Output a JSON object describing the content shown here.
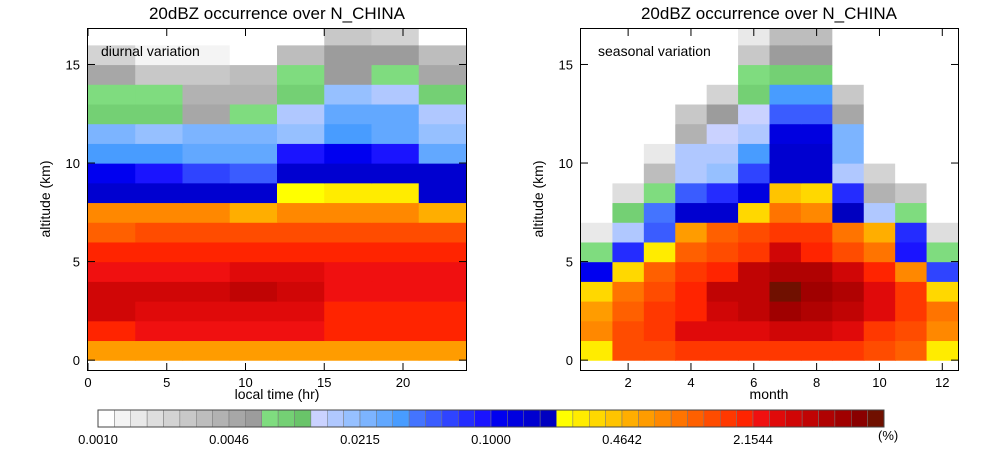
{
  "colorbar": {
    "colors": [
      "#ffffff",
      "#f4f4f4",
      "#e9e9e9",
      "#dedede",
      "#d3d3d3",
      "#c8c8c8",
      "#bdbdbd",
      "#b2b2b2",
      "#a7a7a7",
      "#9c9c9c",
      "#7fdc7f",
      "#74d074",
      "#69c469",
      "#cad2ff",
      "#b0c8ff",
      "#96c0ff",
      "#7cb4ff",
      "#62a8ff",
      "#489cff",
      "#4474ff",
      "#3a5cff",
      "#2f44ff",
      "#242cff",
      "#1a14ff",
      "#0000f0",
      "#0000e0",
      "#0000d0",
      "#0000c0",
      "#ffff00",
      "#ffec00",
      "#ffd800",
      "#ffc400",
      "#ffae00",
      "#ff9c00",
      "#ff8800",
      "#ff7400",
      "#ff6000",
      "#ff4c00",
      "#ff3800",
      "#ff2400",
      "#f01010",
      "#e00a0a",
      "#d00606",
      "#c00404",
      "#b00202",
      "#a00000",
      "#8a0000",
      "#701000"
    ],
    "tick_labels": [
      "0.0010",
      "0.0046",
      "0.0215",
      "0.1000",
      "0.4642",
      "2.1544"
    ],
    "unit": "(%)"
  },
  "chart_data": [
    {
      "type": "heatmap",
      "title": "20dBZ occurrence over N_CHINA",
      "annotation": "diurnal variation",
      "xlabel": "local time (hr)",
      "ylabel": "altitude (km)",
      "xlim": [
        0,
        24
      ],
      "ylim": [
        -0.5,
        16.8
      ],
      "xticks": [
        0,
        5,
        10,
        15,
        20
      ],
      "yticks": [
        0,
        5,
        10,
        15
      ],
      "x_edges": [
        0,
        3,
        6,
        9,
        12,
        15,
        18,
        21,
        24
      ],
      "y_edges": [
        0,
        1,
        2,
        3,
        4,
        5,
        6,
        7,
        8,
        9,
        10,
        11,
        12,
        13,
        14,
        15,
        16,
        17
      ],
      "levels": [
        [
          33,
          33,
          33,
          33,
          33,
          33,
          33,
          33
        ],
        [
          39,
          40,
          40,
          40,
          40,
          39,
          39,
          39
        ],
        [
          42,
          41,
          41,
          41,
          41,
          39,
          39,
          39
        ],
        [
          42,
          42,
          42,
          43,
          42,
          40,
          40,
          40
        ],
        [
          40,
          40,
          40,
          41,
          41,
          40,
          40,
          40
        ],
        [
          39,
          39,
          39,
          39,
          39,
          39,
          39,
          39
        ],
        [
          36,
          37,
          37,
          37,
          37,
          37,
          37,
          37
        ],
        [
          34,
          34,
          34,
          32,
          34,
          34,
          34,
          32
        ],
        [
          26,
          26,
          26,
          26,
          28,
          29,
          29,
          26
        ],
        [
          24,
          23,
          21,
          20,
          26,
          26,
          26,
          26
        ],
        [
          18,
          18,
          17,
          17,
          23,
          24,
          23,
          17
        ],
        [
          16,
          15,
          16,
          16,
          15,
          18,
          17,
          15
        ],
        [
          11,
          11,
          8,
          10,
          14,
          17,
          17,
          14
        ],
        [
          10,
          10,
          7,
          7,
          11,
          15,
          14,
          11
        ],
        [
          8,
          5,
          5,
          6,
          10,
          9,
          10,
          8
        ],
        [
          4,
          1,
          1,
          0,
          6,
          9,
          9,
          6
        ],
        [
          0,
          0,
          0,
          0,
          0,
          5,
          4,
          0
        ]
      ]
    },
    {
      "type": "heatmap",
      "title": "20dBZ occurrence over N_CHINA",
      "annotation": "seasonal variation",
      "xlabel": "month",
      "ylabel": "altitude (km)",
      "xlim": [
        0.5,
        12.5
      ],
      "ylim": [
        -0.5,
        16.8
      ],
      "xticks": [
        2,
        4,
        6,
        8,
        10,
        12
      ],
      "yticks": [
        0,
        5,
        10,
        15
      ],
      "x_edges": [
        0.5,
        1.5,
        2.5,
        3.5,
        4.5,
        5.5,
        6.5,
        7.5,
        8.5,
        9.5,
        10.5,
        11.5,
        12.5
      ],
      "y_edges": [
        0,
        1,
        2,
        3,
        4,
        5,
        6,
        7,
        8,
        9,
        10,
        11,
        12,
        13,
        14,
        15,
        16,
        17
      ],
      "levels": [
        [
          29,
          37,
          37,
          38,
          38,
          38,
          38,
          38,
          38,
          37,
          36,
          29
        ],
        [
          34,
          37,
          38,
          41,
          41,
          41,
          42,
          42,
          41,
          38,
          37,
          34
        ],
        [
          33,
          36,
          38,
          39,
          42,
          43,
          45,
          44,
          43,
          41,
          38,
          35
        ],
        [
          30,
          35,
          37,
          39,
          43,
          43,
          47,
          45,
          44,
          41,
          38,
          30
        ],
        [
          24,
          30,
          36,
          38,
          39,
          43,
          44,
          44,
          42,
          39,
          34,
          21
        ],
        [
          10,
          22,
          29,
          36,
          37,
          38,
          42,
          39,
          37,
          35,
          23,
          10
        ],
        [
          2,
          14,
          20,
          33,
          36,
          37,
          38,
          38,
          35,
          32,
          22,
          3
        ],
        [
          0,
          11,
          19,
          26,
          26,
          30,
          35,
          34,
          27,
          14,
          10,
          0
        ],
        [
          0,
          3,
          10,
          20,
          22,
          25,
          31,
          30,
          22,
          7,
          5,
          0
        ],
        [
          0,
          0,
          6,
          14,
          15,
          21,
          26,
          26,
          14,
          4,
          0,
          0
        ],
        [
          0,
          0,
          2,
          14,
          14,
          18,
          26,
          26,
          16,
          0,
          0,
          0
        ],
        [
          0,
          0,
          0,
          7,
          13,
          14,
          25,
          25,
          16,
          0,
          0,
          0
        ],
        [
          0,
          0,
          0,
          5,
          9,
          13,
          20,
          20,
          8,
          0,
          0,
          0
        ],
        [
          0,
          0,
          0,
          0,
          4,
          11,
          18,
          18,
          5,
          0,
          0,
          0
        ],
        [
          0,
          0,
          0,
          0,
          0,
          10,
          11,
          11,
          0,
          0,
          0,
          0
        ],
        [
          0,
          0,
          0,
          0,
          0,
          5,
          9,
          9,
          0,
          0,
          0,
          0
        ],
        [
          0,
          0,
          0,
          0,
          0,
          2,
          6,
          6,
          0,
          0,
          0,
          0
        ]
      ]
    }
  ]
}
